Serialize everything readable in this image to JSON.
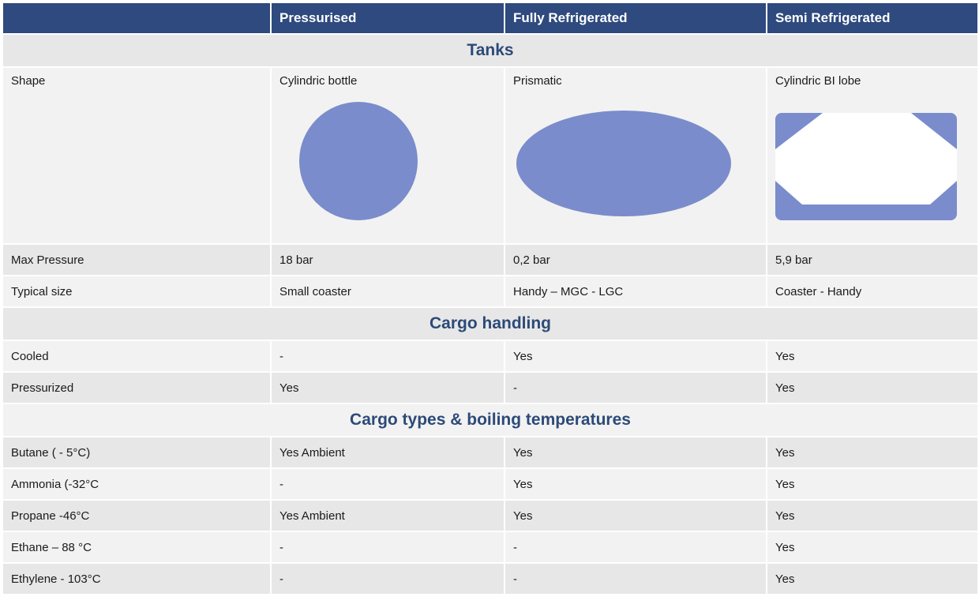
{
  "header": {
    "blank": "",
    "col1": "Pressurised",
    "col2": "Fully Refrigerated",
    "col3": "Semi Refrigerated"
  },
  "sections": {
    "tanks": "Tanks",
    "cargo_handling": "Cargo handling",
    "cargo_types": "Cargo types & boiling temperatures"
  },
  "shape_row": {
    "label": "Shape",
    "pressurised": "Cylindric bottle",
    "fully_refrigerated": "Prismatic",
    "semi_refrigerated": "Cylindric BI lobe",
    "shape_color": "#7a8ccb"
  },
  "tank_rows": [
    {
      "label": "Max Pressure",
      "pressurised": "18 bar",
      "fully_refrigerated": "0,2 bar",
      "semi_refrigerated": "5,9 bar"
    },
    {
      "label": "Typical size",
      "pressurised": "Small coaster",
      "fully_refrigerated": "Handy – MGC - LGC",
      "semi_refrigerated": "Coaster - Handy"
    }
  ],
  "handling_rows": [
    {
      "label": "Cooled",
      "pressurised": "-",
      "fully_refrigerated": "Yes",
      "semi_refrigerated": "Yes"
    },
    {
      "label": "Pressurized",
      "pressurised": "Yes",
      "fully_refrigerated": "-",
      "semi_refrigerated": "Yes"
    }
  ],
  "cargo_rows": [
    {
      "label": "Butane ( - 5°C)",
      "pressurised": "Yes Ambient",
      "fully_refrigerated": "Yes",
      "semi_refrigerated": "Yes"
    },
    {
      "label": "Ammonia (-32°C",
      "pressurised": "-",
      "fully_refrigerated": "Yes",
      "semi_refrigerated": "Yes"
    },
    {
      "label": "Propane -46°C",
      "pressurised": "Yes Ambient",
      "fully_refrigerated": "Yes",
      "semi_refrigerated": "Yes"
    },
    {
      "label": "Ethane – 88 °C",
      "pressurised": "-",
      "fully_refrigerated": "-",
      "semi_refrigerated": "Yes"
    },
    {
      "label": "Ethylene - 103°C",
      "pressurised": "-",
      "fully_refrigerated": "-",
      "semi_refrigerated": "Yes"
    }
  ]
}
